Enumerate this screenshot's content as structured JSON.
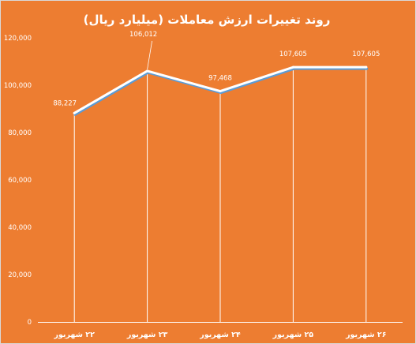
{
  "colors": {
    "background": "#ED7D31",
    "border": "#D9D9D9",
    "line": "#ffffff",
    "line_shadow": "#5B9BD5",
    "text": "#ffffff"
  },
  "chart_data": {
    "type": "line",
    "title": "روند تغییرات ارزش معاملات (میلیارد ریال)",
    "categories": [
      "۲۲ شهریور",
      "۲۳ شهریور",
      "۲۴ شهریور",
      "۲۵ شهریور",
      "۲۶ شهریور"
    ],
    "values": [
      88227,
      106012,
      97468,
      107605,
      107605
    ],
    "data_labels": [
      "88,227",
      "106,012",
      "97,468",
      "107,605",
      "107,605"
    ],
    "y_ticks": [
      0,
      20000,
      40000,
      60000,
      80000,
      100000,
      120000
    ],
    "y_tick_labels": [
      "0",
      "20,000",
      "40,000",
      "60,000",
      "80,000",
      "100,000",
      "120,000"
    ],
    "ylim": [
      0,
      120000
    ],
    "drop_lines": true,
    "grid": false,
    "legend": "none"
  }
}
